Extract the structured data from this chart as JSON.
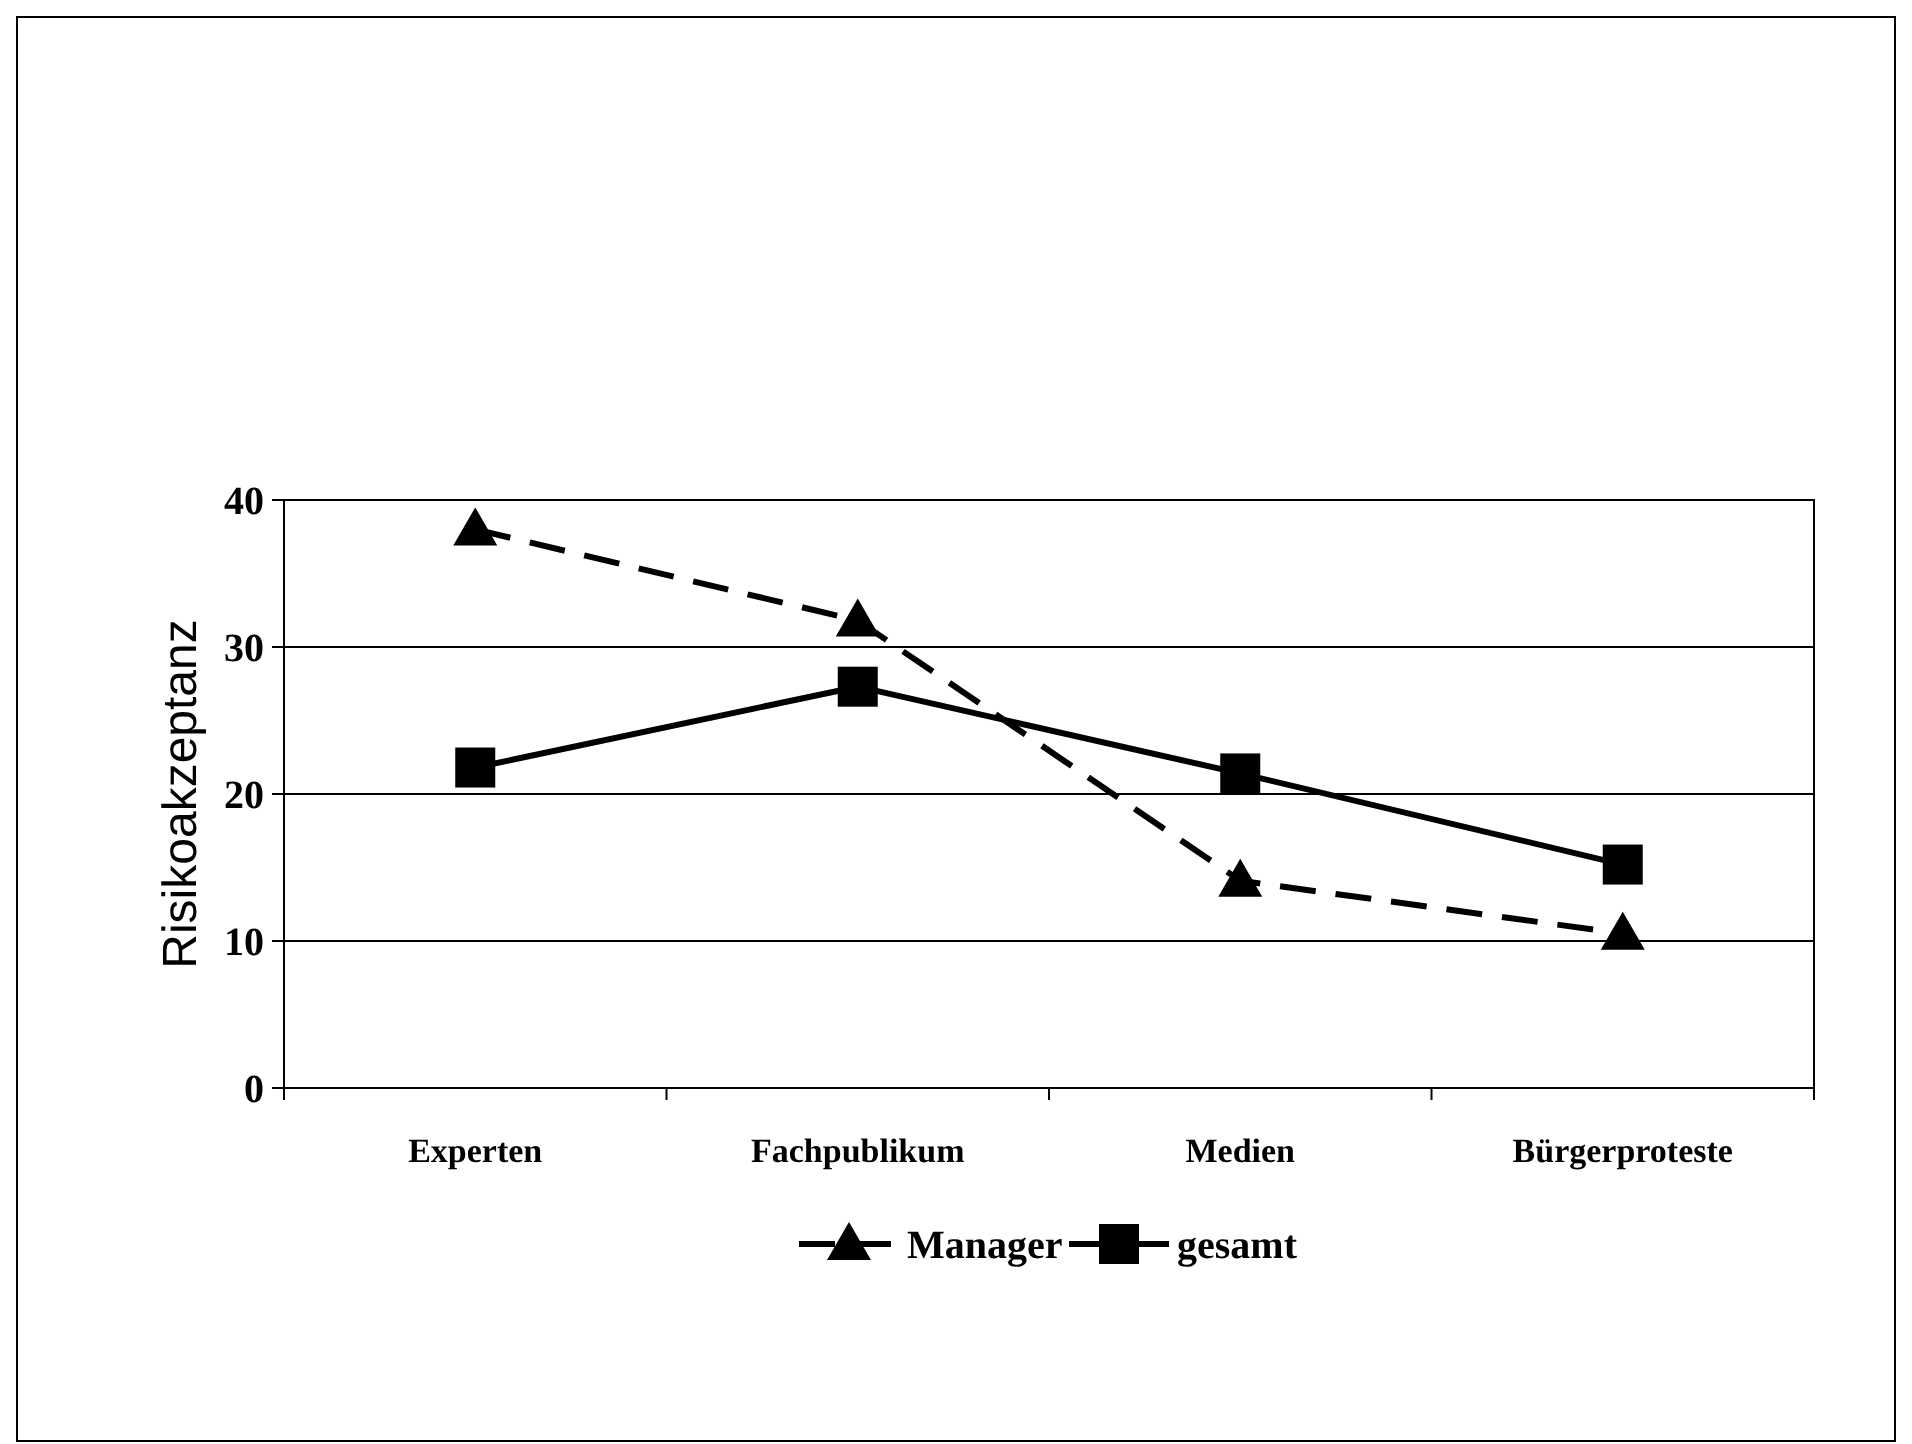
{
  "chart_data": {
    "type": "line",
    "ylabel": "Risikoakzeptanz",
    "categories": [
      "Experten",
      "Fachpublikum",
      "Medien",
      "Bürgerproteste"
    ],
    "series": [
      {
        "name": "Manager",
        "color": "#000000",
        "values": [
          38,
          31.8,
          14.1,
          10.5
        ],
        "marker": "triangle",
        "line_style": "dashed"
      },
      {
        "name": "gesamt",
        "color": "#000000",
        "values": [
          21.8,
          27.3,
          21.4,
          15.2
        ],
        "marker": "square",
        "line_style": "solid"
      }
    ],
    "ylim": [
      0,
      40
    ],
    "yticks": [
      0,
      10,
      20,
      30,
      40
    ],
    "grid": "y",
    "legend": "bottom"
  }
}
